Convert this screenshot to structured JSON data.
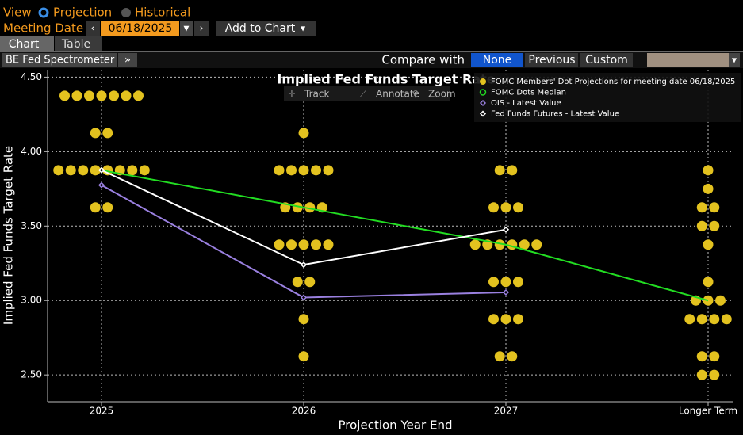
{
  "toolbar": {
    "view_label": "View",
    "view_options": [
      "Projection",
      "Historical"
    ],
    "meeting_date_label": "Meeting Date",
    "meeting_date": "06/18/2025",
    "add_to_chart": "Add to Chart",
    "tabs": [
      "Chart",
      "Table"
    ],
    "panel_button": "BE Fed Spectrometer",
    "compare_label": "Compare with",
    "compare_options": [
      "None",
      "Previous",
      "Custom"
    ],
    "chart_tools": [
      "Track",
      "Annotate",
      "Zoom"
    ]
  },
  "chart_data": {
    "type": "dot_plot",
    "title": "Implied Fed Funds Target Rate",
    "x_label": "Projection Year End",
    "y_label": "Implied Fed Funds Target Rate",
    "categories": [
      "2025",
      "2026",
      "2027",
      "Longer Term"
    ],
    "ylim": [
      2.32,
      4.55
    ],
    "yticks": [
      {
        "value": 2.5,
        "label": "2.50"
      },
      {
        "value": 3,
        "label": "3.00"
      },
      {
        "value": 3.5,
        "label": "3.50"
      },
      {
        "value": 4,
        "label": "4.00"
      },
      {
        "value": 4.5,
        "label": "4.50"
      }
    ],
    "grid": true,
    "series": [
      {
        "name": "FOMC Members' Dot Projections for meeting date 06/18/2025",
        "color": "#e3c21f",
        "kind": "dots",
        "values": [
          [
            4.375,
            4.375,
            4.375,
            4.375,
            4.375,
            4.375,
            4.375,
            4.125,
            4.125,
            3.875,
            3.875,
            3.875,
            3.875,
            3.875,
            3.875,
            3.875,
            3.875,
            3.625,
            3.625
          ],
          [
            4.125,
            3.875,
            3.875,
            3.875,
            3.875,
            3.875,
            3.625,
            3.625,
            3.625,
            3.625,
            3.375,
            3.375,
            3.375,
            3.375,
            3.375,
            3.125,
            3.125,
            2.875,
            2.625
          ],
          [
            3.875,
            3.875,
            3.625,
            3.625,
            3.625,
            3.375,
            3.375,
            3.375,
            3.375,
            3.375,
            3.375,
            3.125,
            3.125,
            3.125,
            2.875,
            2.875,
            2.875,
            2.625,
            2.625
          ],
          [
            3.875,
            3.75,
            3.625,
            3.625,
            3.5,
            3.5,
            3.375,
            3.125,
            3,
            3,
            3,
            2.875,
            2.875,
            2.875,
            2.875,
            2.625,
            2.625,
            2.5,
            2.5
          ]
        ]
      },
      {
        "name": "FOMC Dots Median",
        "color": "#22dd22",
        "kind": "line",
        "values": [
          3.875,
          3.625,
          3.375,
          3
        ]
      },
      {
        "name": "OIS - Latest Value",
        "color": "#9a80e0",
        "kind": "line_marker",
        "values": [
          3.775,
          3.02,
          3.055,
          null
        ]
      },
      {
        "name": "Fed Funds Futures - Latest Value",
        "color": "#ffffff",
        "kind": "line_marker",
        "values": [
          3.876,
          3.24,
          3.476,
          null
        ]
      }
    ]
  }
}
